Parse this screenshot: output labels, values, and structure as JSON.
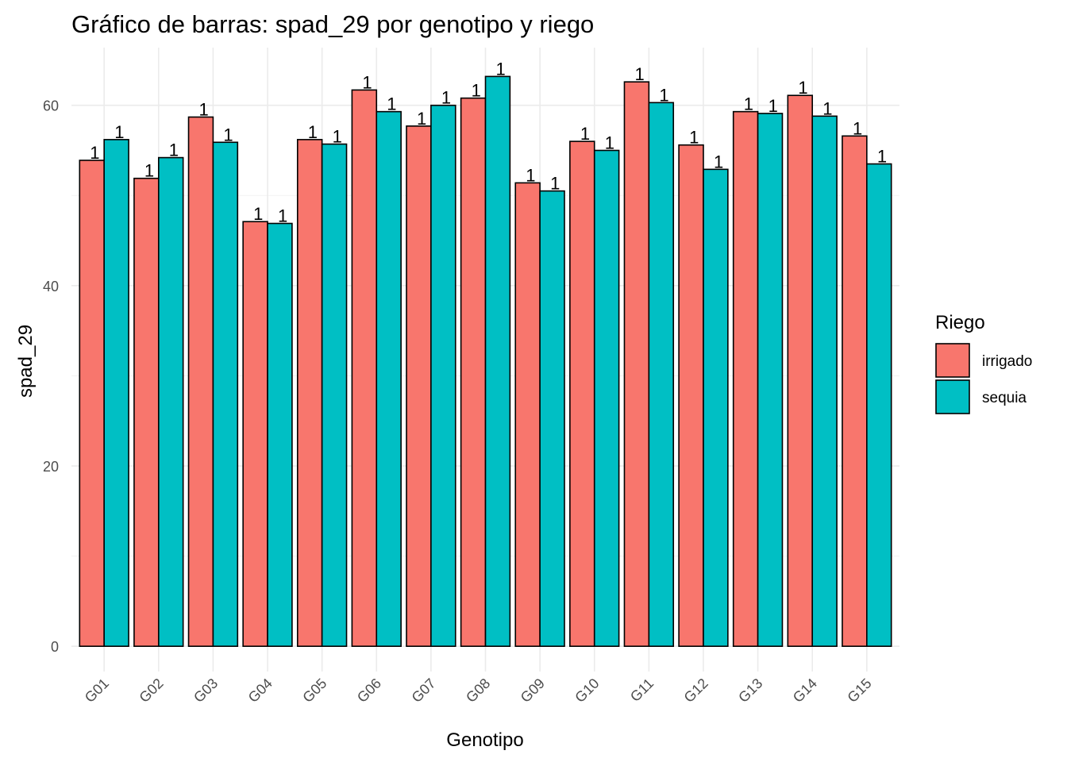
{
  "chart_data": {
    "type": "bar",
    "title": "Gráfico de barras: spad_29 por genotipo y riego",
    "xlabel": "Genotipo",
    "ylabel": "spad_29",
    "ylim": [
      -2.8,
      66.4
    ],
    "y_ticks": [
      0,
      20,
      40,
      60
    ],
    "grid": true,
    "legend_position": "right",
    "legend_title": "Riego",
    "categories": [
      "G01",
      "G02",
      "G03",
      "G04",
      "G05",
      "G06",
      "G07",
      "G08",
      "G09",
      "G10",
      "G11",
      "G12",
      "G13",
      "G14",
      "G15"
    ],
    "series": [
      {
        "name": "irrigado",
        "color": "#F8766D",
        "values": [
          53.9,
          51.9,
          58.7,
          47.1,
          56.2,
          61.7,
          57.7,
          60.8,
          51.4,
          56.0,
          62.6,
          55.6,
          59.3,
          61.1,
          56.6
        ],
        "labels": [
          "1",
          "1",
          "1",
          "1",
          "1",
          "1",
          "1",
          "1",
          "1",
          "1",
          "1",
          "1",
          "1",
          "1",
          "1"
        ]
      },
      {
        "name": "sequia",
        "color": "#00BFC4",
        "values": [
          56.2,
          54.2,
          55.9,
          46.9,
          55.7,
          59.3,
          60.0,
          63.2,
          50.5,
          55.0,
          60.3,
          52.9,
          59.1,
          58.8,
          53.5
        ],
        "labels": [
          "1",
          "1",
          "1",
          "1",
          "1",
          "1",
          "1",
          "1",
          "1",
          "1",
          "1",
          "1",
          "1",
          "1",
          "1"
        ]
      }
    ]
  }
}
